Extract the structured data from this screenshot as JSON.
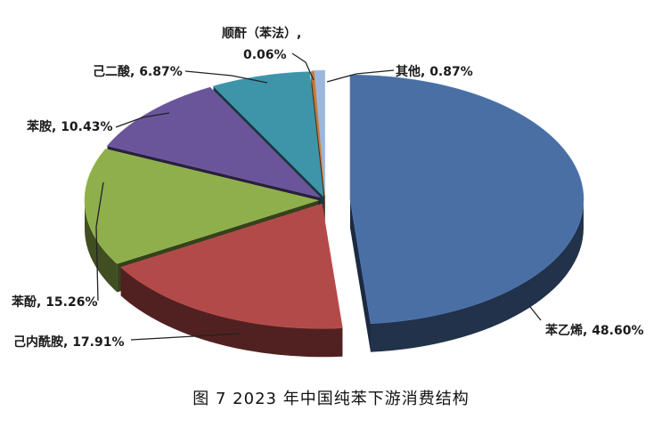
{
  "chart_data": {
    "type": "pie",
    "style": "3d-exploded",
    "title": "图 7  2023 年中国纯苯下游消费结构",
    "slices": [
      {
        "name": "苯乙烯",
        "value": 48.6,
        "label": "苯乙烯, 48.60%",
        "color": "#4a6fa5"
      },
      {
        "name": "己内酰胺",
        "value": 17.91,
        "label": "己内酰胺, 17.91%",
        "color": "#b34a4a"
      },
      {
        "name": "苯酚",
        "value": 15.26,
        "label": "苯酚, 15.26%",
        "color": "#8fae4c"
      },
      {
        "name": "苯胺",
        "value": 10.43,
        "label": "苯胺, 10.43%",
        "color": "#6b559a"
      },
      {
        "name": "己二酸",
        "value": 6.87,
        "label": "己二酸, 6.87%",
        "color": "#3e94a8"
      },
      {
        "name": "顺酐（苯法）",
        "value": 0.06,
        "label_line1": "顺酐（苯法）,",
        "label_line2": "0.06%",
        "color": "#c07a3a"
      },
      {
        "name": "其他",
        "value": 0.87,
        "label": "其他, 0.87%",
        "color": "#9db7dc"
      }
    ],
    "legend": "none"
  }
}
